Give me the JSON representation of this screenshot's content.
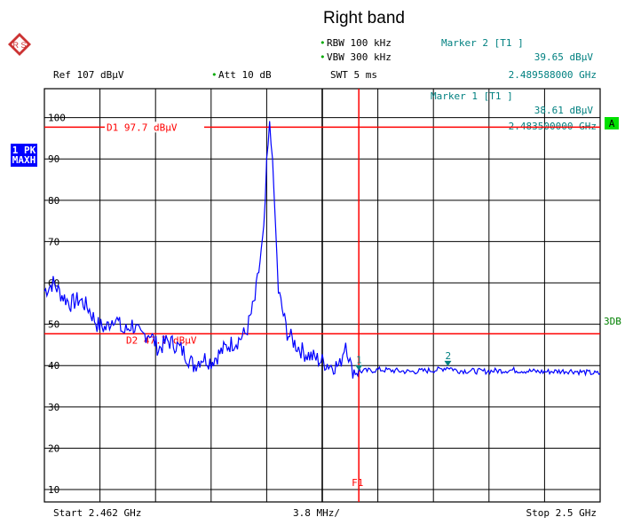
{
  "title": "Right band",
  "header": {
    "ref": "Ref  107 dBµV",
    "att": "Att  10 dB",
    "rbw": "RBW 100 kHz",
    "vbw": "VBW 300 kHz",
    "swt": "SWT 5 ms",
    "marker2_title": "Marker 2 [T1 ]",
    "marker2_level": "39.65 dBµV",
    "marker2_freq": "2.489588000 GHz",
    "marker1_title": "Marker 1 [T1 ]",
    "marker1_level": "38.61 dBµV",
    "marker1_freq": "2.483500000 GHz",
    "side_label_1pk": "1 PK",
    "side_label_maxh": "MAXH",
    "side_a": "A",
    "side_3db": "3DB",
    "d1_label": "D1 97.7 dBµV",
    "d2_label": "D2 47.7 dBµV",
    "f1_label": "F1",
    "marker1_num": "1",
    "marker2_num": "2"
  },
  "footer": {
    "start": "Start 2.462 GHz",
    "span": "3.8 MHz/",
    "stop": "Stop 2.5 GHz"
  },
  "colors": {
    "trace": "#0000ff",
    "display_line": "#ff0000",
    "grid": "#000000",
    "marker": "#008080",
    "side_badge_bg": "#0000ff",
    "side_a_bg": "#00e000"
  },
  "chart_data": {
    "type": "line",
    "xlim": [
      2.462,
      2.5
    ],
    "ylim": [
      7,
      107
    ],
    "yticks": [
      10,
      20,
      30,
      40,
      50,
      60,
      70,
      80,
      90,
      100
    ],
    "ytick_labels": [
      "10",
      "20",
      "30",
      "40",
      "50",
      "60",
      "70",
      "80",
      "90",
      "100"
    ],
    "grid": true,
    "display_lines": [
      97.7,
      47.7
    ],
    "frequency_line": 2.4835,
    "markers": [
      {
        "x": 2.4835,
        "y": 38.61
      },
      {
        "x": 2.489588,
        "y": 39.65
      }
    ],
    "series": [
      {
        "x": [
          2.462,
          2.4626,
          2.4632,
          2.4638,
          2.4644,
          2.465,
          2.4656,
          2.4662,
          2.4668,
          2.4674,
          2.468,
          2.4686,
          2.4692,
          2.4698,
          2.4704,
          2.471,
          2.4716,
          2.4722,
          2.4728,
          2.4734,
          2.474,
          2.4746,
          2.4752,
          2.4758,
          2.4764,
          2.477,
          2.4772,
          2.4774,
          2.4776,
          2.4778,
          2.478,
          2.4786,
          2.4792,
          2.4798,
          2.4804,
          2.481,
          2.4816,
          2.4822,
          2.4826,
          2.483,
          2.4836,
          2.485,
          2.487,
          2.489,
          2.4896,
          2.4902,
          2.492,
          2.494,
          2.496,
          2.498,
          2.5
        ],
        "y": [
          58,
          60,
          57,
          55,
          56,
          54,
          50,
          49,
          52,
          48,
          50,
          47,
          48,
          44,
          46,
          45,
          43,
          40,
          42,
          41,
          43,
          45,
          46,
          48,
          56,
          72,
          88,
          97.7,
          90,
          74,
          58,
          48,
          45,
          43,
          42,
          41,
          40,
          40,
          46,
          39,
          38.6,
          39,
          38.5,
          39,
          39.65,
          38.8,
          38.6,
          38.9,
          38.5,
          38.7,
          38
        ]
      }
    ]
  }
}
